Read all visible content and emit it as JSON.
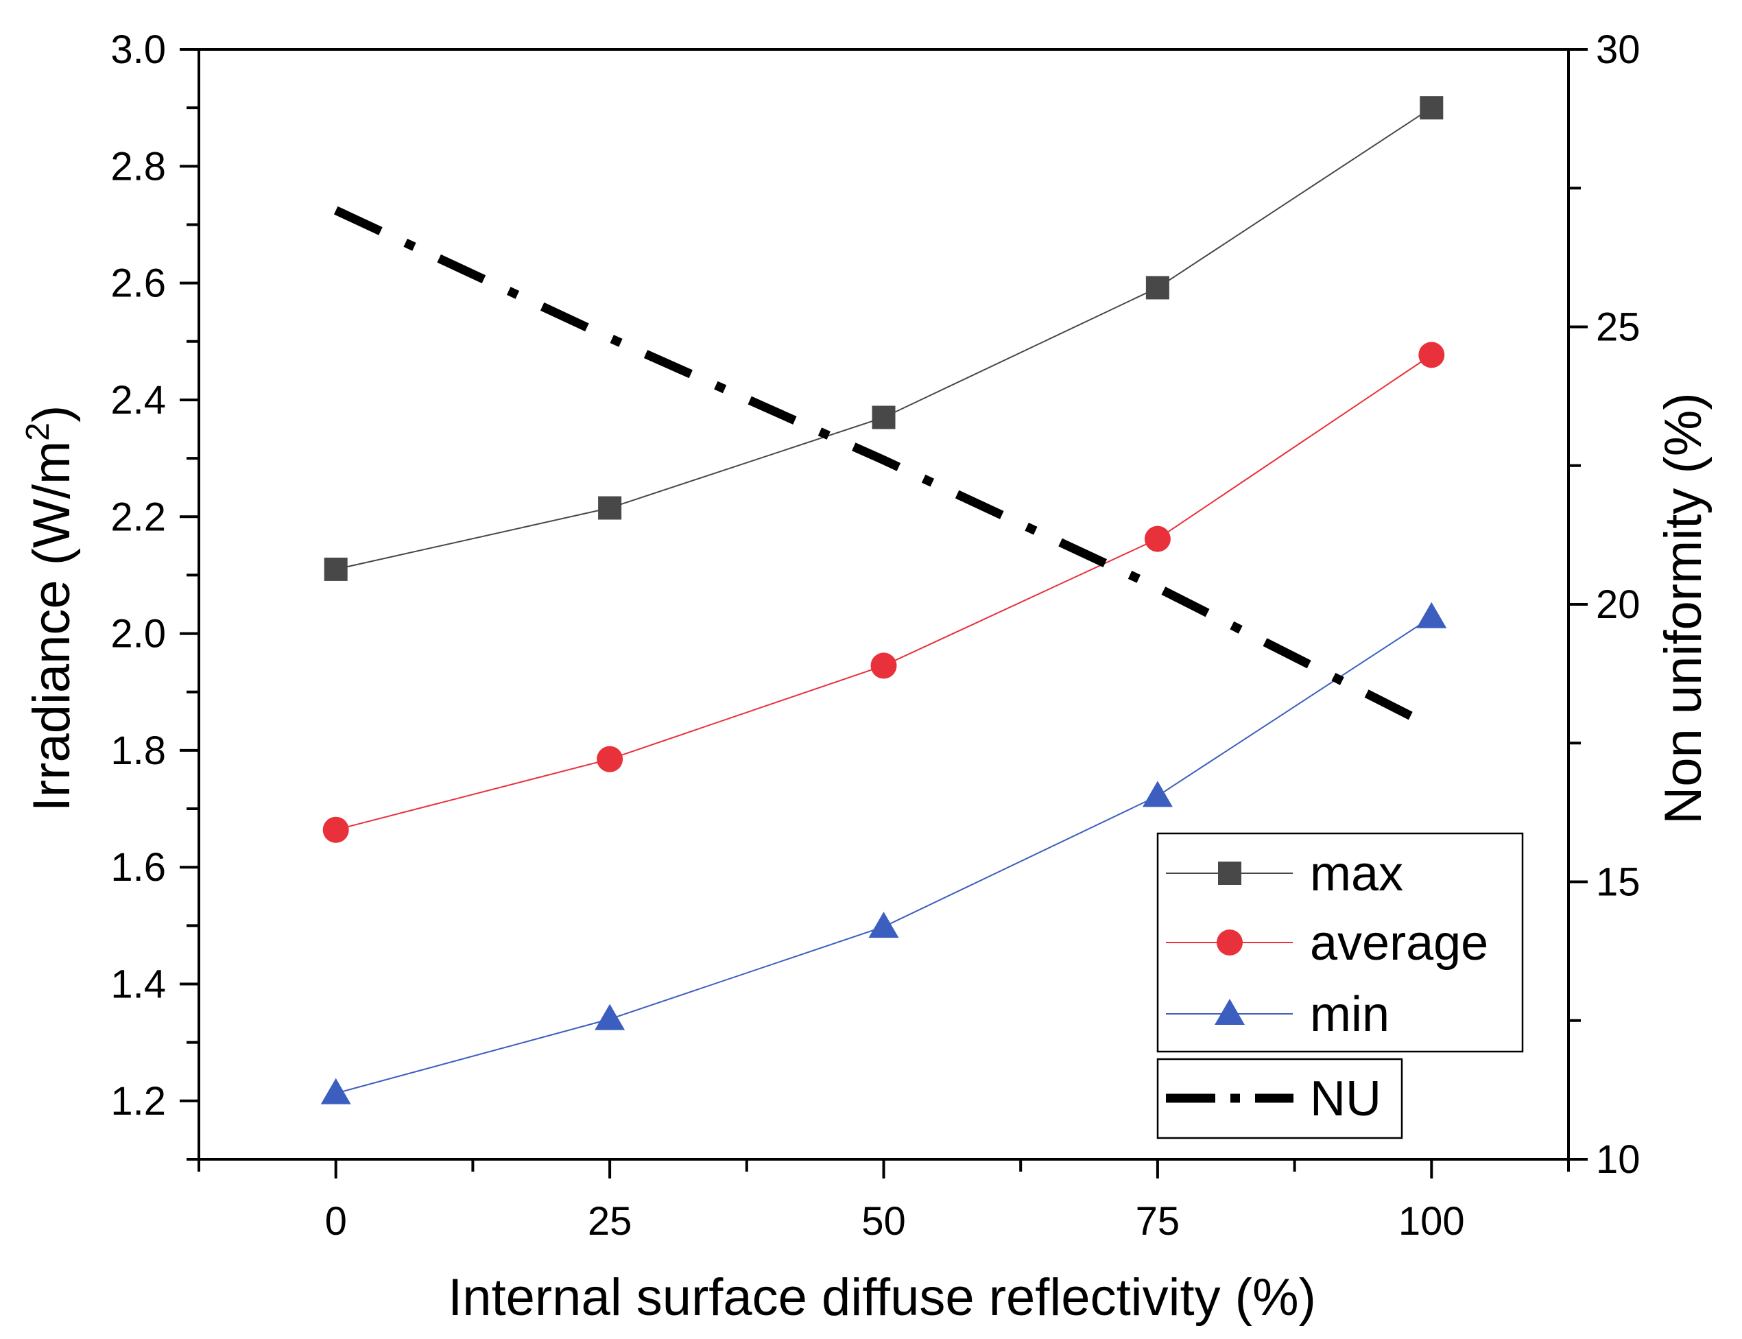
{
  "chart_data": {
    "type": "line",
    "xlabel": "Internal surface diffuse reflectivity (%)",
    "ylabel": "Irradiance (W/m",
    "ylabel_sup": "2",
    "ylabel_end": ")",
    "y2label": "Non uniformity (%)",
    "xlim": [
      -12.5,
      112.5
    ],
    "ylim": [
      1.1,
      3.0
    ],
    "y2lim": [
      10,
      30
    ],
    "xticks": [
      0,
      25,
      50,
      75,
      100
    ],
    "yticks": [
      1.2,
      1.4,
      1.6,
      1.8,
      2.0,
      2.2,
      2.4,
      2.6,
      2.8,
      3.0
    ],
    "y2ticks": [
      10,
      15,
      20,
      25,
      30
    ],
    "x": [
      0,
      25,
      50,
      75,
      100
    ],
    "series": [
      {
        "name": "max",
        "axis": "left",
        "marker": "square",
        "color": "#484848",
        "values": [
          2.11,
          2.215,
          2.37,
          2.592,
          2.9
        ]
      },
      {
        "name": "average",
        "axis": "left",
        "marker": "circle",
        "color": "#e8313b",
        "values": [
          1.664,
          1.785,
          1.945,
          2.162,
          2.477
        ]
      },
      {
        "name": "min",
        "axis": "left",
        "marker": "triangle",
        "color": "#3c5fbf",
        "values": [
          1.213,
          1.34,
          1.498,
          1.722,
          2.028
        ]
      },
      {
        "name": "NU",
        "axis": "right",
        "marker": "none",
        "color": "#000000",
        "dash": "dash-dot",
        "values": [
          27.1,
          24.8,
          22.6,
          20.3,
          17.8
        ]
      }
    ],
    "legend": {
      "position": "bottom-right",
      "entries": [
        "max",
        "average",
        "min"
      ],
      "second_entries": [
        "NU"
      ]
    }
  }
}
